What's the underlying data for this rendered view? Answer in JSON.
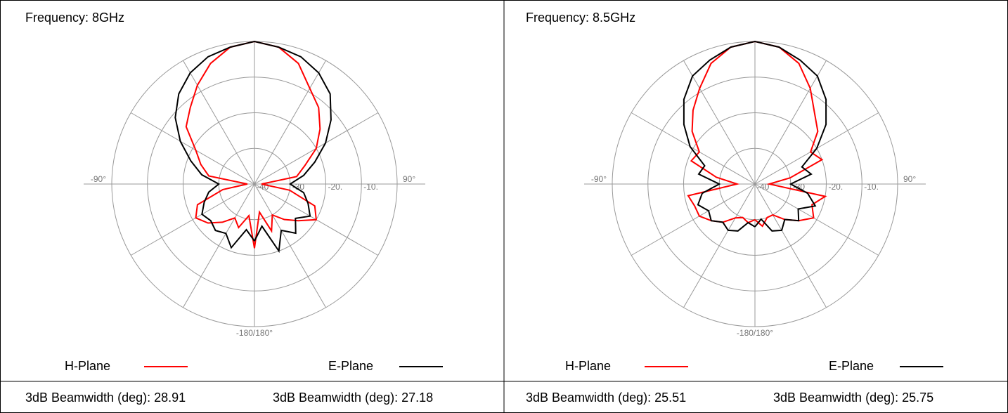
{
  "chart_data": [
    {
      "type": "polar",
      "title": "Frequency: 8GHz",
      "x": [
        -180,
        -170,
        -160,
        -150,
        -140,
        -130,
        -120,
        -110,
        -100,
        -90,
        -80,
        -70,
        -60,
        -50,
        -40,
        -30,
        -20,
        -10,
        0,
        10,
        20,
        30,
        40,
        50,
        60,
        70,
        80,
        90,
        100,
        110,
        120,
        130,
        140,
        150,
        160,
        170,
        180
      ],
      "rlim": [
        -40,
        0
      ],
      "rticks": [
        -40,
        -30,
        {
          "value": -20,
          "label": "-20."
        },
        {
          "value": -10,
          "label": "-10."
        }
      ],
      "thetagrid": [
        0,
        30,
        60,
        90,
        120,
        150,
        180,
        210,
        240,
        270,
        300,
        330
      ],
      "theta_labels": [
        {
          "value": -90,
          "label": "-90°"
        },
        {
          "value": 90,
          "label": "90°"
        },
        {
          "value": 180,
          "label": "-180/180°"
        }
      ],
      "series": [
        {
          "name": "H-Plane",
          "color": "#ff0000",
          "annotation": "3dB Beamwidth (deg): 28.91",
          "values": [
            -22,
            -31,
            -27,
            -29,
            -26,
            -23,
            -21,
            -23,
            -31,
            -38,
            -27,
            -24,
            -21,
            -15,
            -12,
            -8,
            -4,
            -1,
            0,
            -1,
            -4,
            -9,
            -12,
            -16,
            -20,
            -25,
            -28,
            -38,
            -30,
            -22,
            -20,
            -24,
            -27,
            -30,
            -26,
            -32,
            -22
          ]
        },
        {
          "name": "E-Plane",
          "color": "#000000",
          "annotation": "3dB Beamwidth (deg): 27.18",
          "values": [
            -24,
            -27,
            -21,
            -24,
            -23,
            -24,
            -23,
            -25,
            -27,
            -30,
            -25,
            -21,
            -16,
            -11,
            -7,
            -4,
            -2,
            -1,
            0,
            -1,
            -2,
            -4,
            -7,
            -12,
            -17,
            -22,
            -26,
            -30,
            -26,
            -24,
            -22,
            -25,
            -22,
            -25,
            -20,
            -28,
            -24
          ]
        }
      ]
    },
    {
      "type": "polar",
      "title": "Frequency: 8.5GHz",
      "x": [
        -180,
        -170,
        -160,
        -150,
        -140,
        -130,
        -120,
        -110,
        -100,
        -90,
        -80,
        -70,
        -60,
        -50,
        -40,
        -30,
        -20,
        -10,
        0,
        10,
        20,
        30,
        40,
        50,
        60,
        70,
        80,
        90,
        100,
        110,
        120,
        130,
        140,
        150,
        160,
        170,
        180
      ],
      "rlim": [
        -40,
        0
      ],
      "rticks": [
        -40,
        -30,
        {
          "value": -20,
          "label": "-20."
        },
        {
          "value": -10,
          "label": "-10."
        }
      ],
      "thetagrid": [
        0,
        30,
        60,
        90,
        120,
        150,
        180,
        210,
        240,
        270,
        300,
        330
      ],
      "theta_labels": [
        {
          "value": -90,
          "label": "-90°"
        },
        {
          "value": 90,
          "label": "90°"
        },
        {
          "value": 180,
          "label": "-180/180°"
        }
      ],
      "series": [
        {
          "name": "H-Plane",
          "color": "#ff0000",
          "annotation": "3dB Beamwidth (deg): 25.51",
          "values": [
            -30,
            -29,
            -30,
            -29,
            -26,
            -24,
            -22,
            -22,
            -21,
            -35,
            -29,
            -21,
            -22,
            -17,
            -13,
            -9,
            -4,
            -1,
            0,
            -1,
            -4,
            -9,
            -14,
            -17,
            -22,
            -20,
            -30,
            -36,
            -20,
            -23,
            -21,
            -24,
            -27,
            -30,
            -30,
            -28,
            -30
          ]
        },
        {
          "name": "E-Plane",
          "color": "#000000",
          "annotation": "3dB Beamwidth (deg): 25.75",
          "values": [
            -28,
            -29,
            -26,
            -25,
            -26,
            -24,
            -25,
            -23,
            -25,
            -30,
            -24,
            -25,
            -19,
            -14,
            -9,
            -5,
            -3,
            -1,
            0,
            -1,
            -3,
            -5,
            -9,
            -14,
            -20,
            -26,
            -24,
            -30,
            -25,
            -22,
            -26,
            -24,
            -27,
            -25,
            -26,
            -30,
            -28
          ]
        }
      ]
    }
  ]
}
